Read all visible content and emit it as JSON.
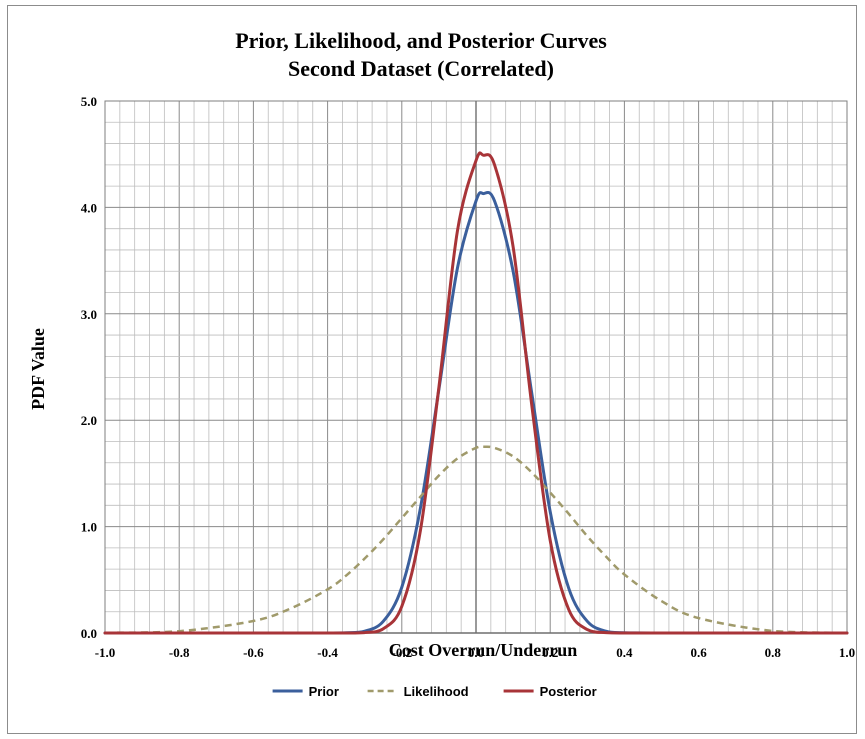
{
  "chart_data": {
    "type": "line",
    "title": "Prior, Likelihood, and Posterior Curves",
    "subtitle": "Second Dataset (Correlated)",
    "xlabel": "Cost Overrun/Underrun",
    "ylabel": "PDF Value",
    "xlim": [
      -1.0,
      1.0
    ],
    "ylim": [
      0.0,
      5.0
    ],
    "x_ticks": [
      -1.0,
      -0.8,
      -0.6,
      -0.4,
      -0.2,
      0.0,
      0.2,
      0.4,
      0.6,
      0.8,
      1.0
    ],
    "x_tick_labels": [
      "-1.0",
      "-0.8",
      "-0.6",
      "-0.4",
      "-0.2",
      "0.0",
      "0.2",
      "0.4",
      "0.6",
      "0.8",
      "1.0"
    ],
    "y_ticks": [
      0.0,
      1.0,
      2.0,
      3.0,
      4.0,
      5.0
    ],
    "y_tick_labels": [
      "0.0",
      "1.0",
      "2.0",
      "3.0",
      "4.0",
      "5.0"
    ],
    "grid": true,
    "legend_position": "bottom",
    "x": [
      -1.0,
      -0.8,
      -0.6,
      -0.5,
      -0.4,
      -0.35,
      -0.3,
      -0.25,
      -0.2,
      -0.15,
      -0.1,
      -0.05,
      0.0,
      0.02,
      0.05,
      0.1,
      0.15,
      0.2,
      0.25,
      0.3,
      0.35,
      0.4,
      0.5,
      0.6,
      0.8,
      1.0
    ],
    "series": [
      {
        "name": "Prior",
        "color": "#3b5f9c",
        "dash": "solid",
        "values": [
          0.0,
          0.0,
          0.0,
          0.0,
          0.0,
          0.002,
          0.017,
          0.11,
          0.43,
          1.17,
          2.29,
          3.43,
          4.06,
          4.13,
          4.06,
          3.4,
          2.26,
          1.14,
          0.42,
          0.11,
          0.017,
          0.002,
          0.0,
          0.0,
          0.0,
          0.0
        ]
      },
      {
        "name": "Likelihood",
        "color": "#a09a6b",
        "dash": "dashed",
        "values": [
          0.002,
          0.017,
          0.113,
          0.23,
          0.41,
          0.54,
          0.7,
          0.88,
          1.08,
          1.28,
          1.48,
          1.64,
          1.74,
          1.75,
          1.74,
          1.66,
          1.51,
          1.32,
          1.12,
          0.91,
          0.72,
          0.55,
          0.3,
          0.14,
          0.019,
          0.001
        ]
      },
      {
        "name": "Posterior",
        "color": "#a83438",
        "dash": "solid",
        "values": [
          0.0,
          0.0,
          0.0,
          0.0,
          0.0,
          0.0,
          0.004,
          0.04,
          0.25,
          0.96,
          2.31,
          3.78,
          4.44,
          4.49,
          4.4,
          3.63,
          2.15,
          0.87,
          0.22,
          0.032,
          0.003,
          0.0,
          0.0,
          0.0,
          0.0,
          0.0
        ]
      }
    ]
  }
}
